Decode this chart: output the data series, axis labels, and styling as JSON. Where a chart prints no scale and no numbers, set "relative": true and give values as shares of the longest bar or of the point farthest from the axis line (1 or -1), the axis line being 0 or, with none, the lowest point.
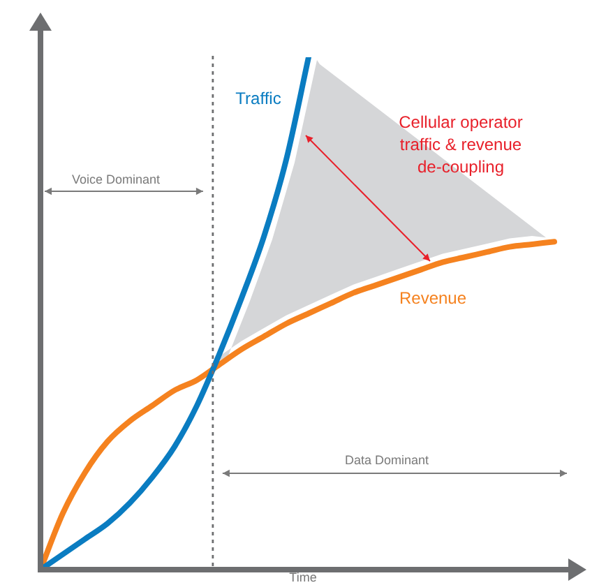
{
  "chart_data": {
    "type": "line",
    "relative": true,
    "xlabel": "Time",
    "marker": "none",
    "line_style": "solid",
    "categories": [
      null,
      null,
      null,
      null,
      null,
      null,
      null,
      null,
      null,
      null,
      null,
      null,
      null,
      null,
      null,
      null,
      null,
      null,
      null,
      null,
      null,
      null,
      null,
      null
    ],
    "series": [
      {
        "name": "Traffic",
        "color": "#0a7cc1",
        "values": [
          0,
          0.03,
          0.06,
          0.09,
          0.13,
          0.18,
          0.24,
          0.32,
          0.42,
          0.53,
          0.65,
          0.8,
          1,
          null,
          null,
          null,
          null,
          null,
          null,
          null,
          null,
          null,
          null,
          null
        ]
      },
      {
        "name": "Revenue",
        "color": "#f5821f",
        "values": [
          0,
          0.11,
          0.19,
          0.25,
          0.29,
          0.32,
          0.35,
          0.37,
          0.4,
          0.43,
          0.455,
          0.48,
          0.5,
          0.52,
          0.54,
          0.555,
          0.57,
          0.585,
          0.6,
          0.61,
          0.62,
          0.63,
          0.635,
          0.64
        ]
      }
    ],
    "annotations": [
      "Voice Dominant",
      "Data Dominant",
      "Cellular operator traffic & revenue de-coupling"
    ]
  }
}
